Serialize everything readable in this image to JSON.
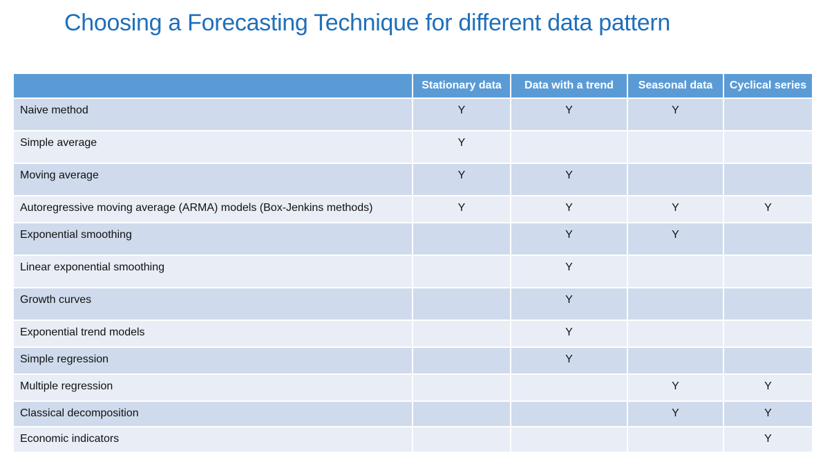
{
  "title": "Choosing a Forecasting Technique for different data pattern",
  "table": {
    "headers": [
      "",
      "Stationary data",
      "Data with a trend",
      "Seasonal data",
      "Cyclical series"
    ],
    "rows": [
      {
        "technique": "Naive method",
        "stationary": "Y",
        "trend": "Y",
        "seasonal": "Y",
        "cyclical": ""
      },
      {
        "technique": "Simple average",
        "stationary": "Y",
        "trend": "",
        "seasonal": "",
        "cyclical": ""
      },
      {
        "technique": "Moving average",
        "stationary": "Y",
        "trend": "Y",
        "seasonal": "",
        "cyclical": ""
      },
      {
        "technique": "Autoregressive moving average (ARMA) models (Box-Jenkins methods)",
        "stationary": "Y",
        "trend": "Y",
        "seasonal": "Y",
        "cyclical": "Y"
      },
      {
        "technique": "Exponential smoothing",
        "stationary": "",
        "trend": "Y",
        "seasonal": "Y",
        "cyclical": ""
      },
      {
        "technique": "Linear exponential smoothing",
        "stationary": "",
        "trend": "Y",
        "seasonal": "",
        "cyclical": ""
      },
      {
        "technique": "Growth curves",
        "stationary": "",
        "trend": "Y",
        "seasonal": "",
        "cyclical": ""
      },
      {
        "technique": "Exponential trend models",
        "stationary": "",
        "trend": "Y",
        "seasonal": "",
        "cyclical": ""
      },
      {
        "technique": "Simple regression",
        "stationary": "",
        "trend": "Y",
        "seasonal": "",
        "cyclical": ""
      },
      {
        "technique": "Multiple regression",
        "stationary": "",
        "trend": "",
        "seasonal": "Y",
        "cyclical": "Y"
      },
      {
        "technique": "Classical decomposition",
        "stationary": "",
        "trend": "",
        "seasonal": "Y",
        "cyclical": "Y"
      },
      {
        "technique": "Economic indicators",
        "stationary": "",
        "trend": "",
        "seasonal": "",
        "cyclical": "Y"
      }
    ]
  },
  "colors": {
    "title": "#1f6fba",
    "header_bg": "#5b9bd5",
    "row_dark": "#cfdbec",
    "row_light": "#e8edf6"
  }
}
